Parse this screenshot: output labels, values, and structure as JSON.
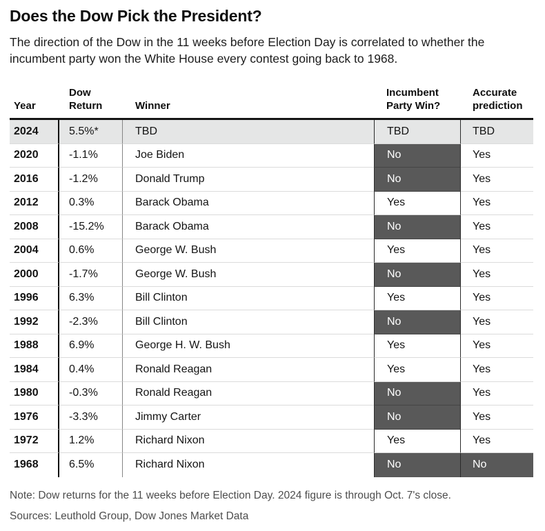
{
  "title": "Does the Dow Pick the President?",
  "subtitle": "The direction of the Dow in the 11 weeks before Election Day is correlated to whether the incumbent party won the White House every contest going back to 1968.",
  "note": "Note: Dow returns for the 11 weeks before Election Day. 2024 figure is through Oct. 7's close.",
  "sources": "Sources: Leuthold Group, Dow Jones Market Data",
  "colors": {
    "highlight_row_bg": "#e5e6e6",
    "no_cell_bg": "#595959",
    "no_cell_text": "#ffffff",
    "header_rule": "#141414",
    "row_divider": "#dbdbdb"
  },
  "chart_data": {
    "type": "table",
    "title": "Does the Dow Pick the President?",
    "columns": [
      "Year",
      "Dow Return",
      "Winner",
      "Incumbent Party Win?",
      "Accurate prediction"
    ],
    "headers": {
      "year": "Year",
      "dow": "Dow\nReturn",
      "winner": "Winner",
      "win": "Incumbent\nParty Win?",
      "acc": "Accurate\nprediction"
    },
    "shading": "Rows where Incumbent Party Win? = No have that cell shaded dark gray; 2024 row shaded light gray; 1968 Accurate prediction No cell also dark gray",
    "rows": [
      {
        "year": "2024",
        "dow": "5.5%*",
        "winner": "TBD",
        "win": "TBD",
        "acc": "TBD"
      },
      {
        "year": "2020",
        "dow": "-1.1%",
        "winner": "Joe Biden",
        "win": "No",
        "acc": "Yes"
      },
      {
        "year": "2016",
        "dow": "-1.2%",
        "winner": "Donald Trump",
        "win": "No",
        "acc": "Yes"
      },
      {
        "year": "2012",
        "dow": "0.3%",
        "winner": "Barack Obama",
        "win": "Yes",
        "acc": "Yes"
      },
      {
        "year": "2008",
        "dow": "-15.2%",
        "winner": "Barack Obama",
        "win": "No",
        "acc": "Yes"
      },
      {
        "year": "2004",
        "dow": "0.6%",
        "winner": "George W. Bush",
        "win": "Yes",
        "acc": "Yes"
      },
      {
        "year": "2000",
        "dow": "-1.7%",
        "winner": "George W. Bush",
        "win": "No",
        "acc": "Yes"
      },
      {
        "year": "1996",
        "dow": "6.3%",
        "winner": "Bill Clinton",
        "win": "Yes",
        "acc": "Yes"
      },
      {
        "year": "1992",
        "dow": "-2.3%",
        "winner": "Bill Clinton",
        "win": "No",
        "acc": "Yes"
      },
      {
        "year": "1988",
        "dow": "6.9%",
        "winner": "George H. W. Bush",
        "win": "Yes",
        "acc": "Yes"
      },
      {
        "year": "1984",
        "dow": "0.4%",
        "winner": "Ronald Reagan",
        "win": "Yes",
        "acc": "Yes"
      },
      {
        "year": "1980",
        "dow": "-0.3%",
        "winner": "Ronald Reagan",
        "win": "No",
        "acc": "Yes"
      },
      {
        "year": "1976",
        "dow": "-3.3%",
        "winner": "Jimmy Carter",
        "win": "No",
        "acc": "Yes"
      },
      {
        "year": "1972",
        "dow": "1.2%",
        "winner": "Richard Nixon",
        "win": "Yes",
        "acc": "Yes"
      },
      {
        "year": "1968",
        "dow": "6.5%",
        "winner": "Richard Nixon",
        "win": "No",
        "acc": "No"
      }
    ]
  }
}
